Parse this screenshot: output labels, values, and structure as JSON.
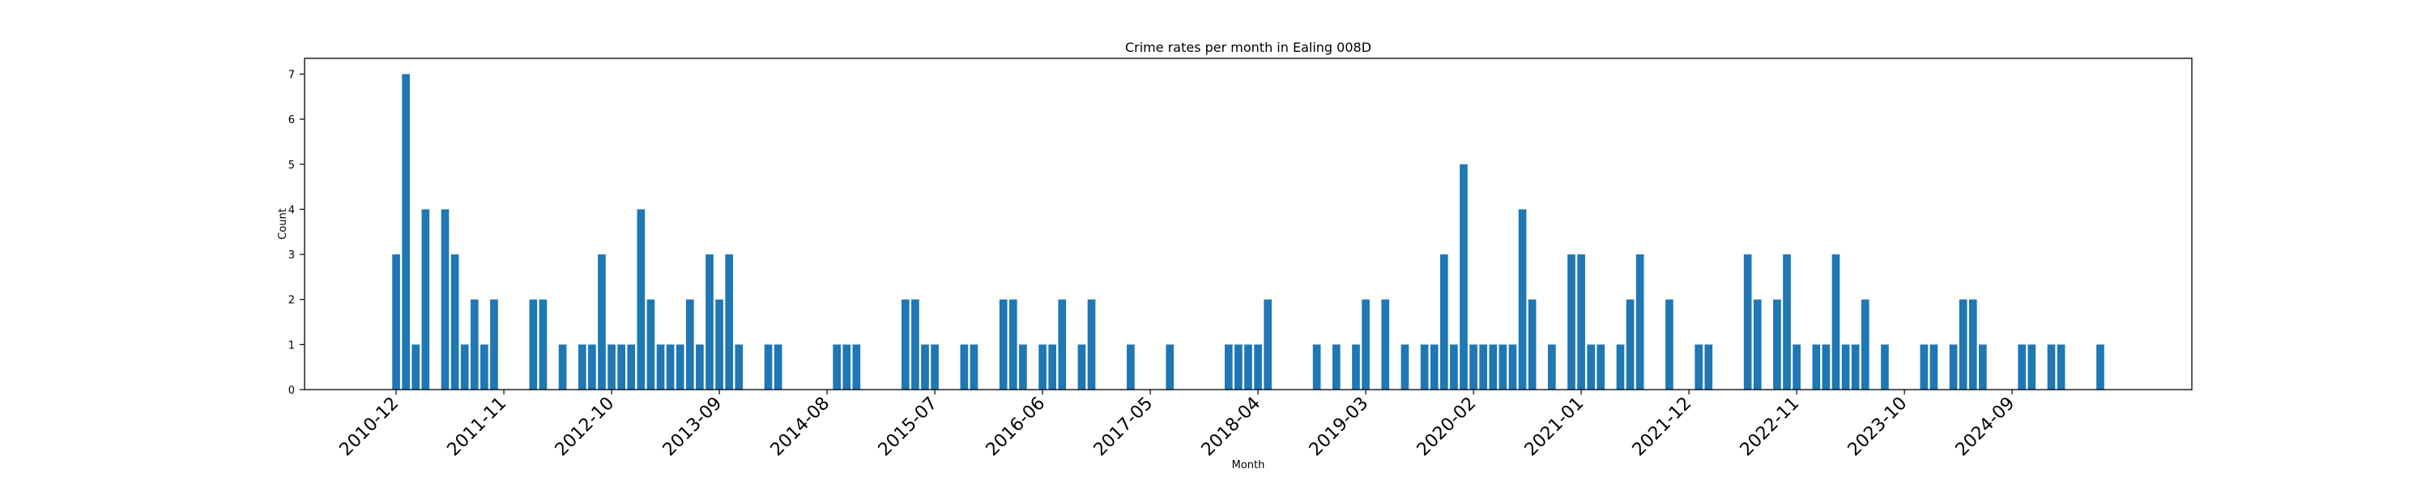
{
  "chart_data": {
    "type": "bar",
    "title": "Crime rates per month in Ealing 008D",
    "xlabel": "Month",
    "ylabel": "Count",
    "ylim": [
      0,
      7.35
    ],
    "yticks": [
      0,
      1,
      2,
      3,
      4,
      5,
      6,
      7
    ],
    "xtick_labels": [
      "2010-12",
      "2011-11",
      "2012-10",
      "2013-09",
      "2014-08",
      "2015-07",
      "2016-06",
      "2017-05",
      "2018-04",
      "2019-03",
      "2020-02",
      "2021-01",
      "2021-12",
      "2022-11",
      "2023-10",
      "2024-09"
    ],
    "bar_color": "#1f77b4",
    "grid": false,
    "points": [
      [
        "2010-12",
        3
      ],
      [
        "2011-01",
        7
      ],
      [
        "2011-02",
        1
      ],
      [
        "2011-03",
        4
      ],
      [
        "2011-05",
        4
      ],
      [
        "2011-06",
        3
      ],
      [
        "2011-07",
        1
      ],
      [
        "2011-08",
        2
      ],
      [
        "2011-09",
        1
      ],
      [
        "2011-10",
        2
      ],
      [
        "2012-02",
        2
      ],
      [
        "2012-03",
        2
      ],
      [
        "2012-05",
        1
      ],
      [
        "2012-07",
        1
      ],
      [
        "2012-08",
        1
      ],
      [
        "2012-09",
        3
      ],
      [
        "2012-10",
        1
      ],
      [
        "2012-11",
        1
      ],
      [
        "2012-12",
        1
      ],
      [
        "2013-01",
        4
      ],
      [
        "2013-02",
        2
      ],
      [
        "2013-03",
        1
      ],
      [
        "2013-04",
        1
      ],
      [
        "2013-05",
        1
      ],
      [
        "2013-06",
        2
      ],
      [
        "2013-07",
        1
      ],
      [
        "2013-08",
        3
      ],
      [
        "2013-09",
        2
      ],
      [
        "2013-10",
        3
      ],
      [
        "2013-11",
        1
      ],
      [
        "2014-02",
        1
      ],
      [
        "2014-03",
        1
      ],
      [
        "2014-09",
        1
      ],
      [
        "2014-10",
        1
      ],
      [
        "2014-11",
        1
      ],
      [
        "2015-04",
        2
      ],
      [
        "2015-05",
        2
      ],
      [
        "2015-06",
        1
      ],
      [
        "2015-07",
        1
      ],
      [
        "2015-10",
        1
      ],
      [
        "2015-11",
        1
      ],
      [
        "2016-02",
        2
      ],
      [
        "2016-03",
        2
      ],
      [
        "2016-04",
        1
      ],
      [
        "2016-06",
        1
      ],
      [
        "2016-07",
        1
      ],
      [
        "2016-08",
        2
      ],
      [
        "2016-10",
        1
      ],
      [
        "2016-11",
        2
      ],
      [
        "2017-03",
        1
      ],
      [
        "2017-07",
        1
      ],
      [
        "2018-01",
        1
      ],
      [
        "2018-02",
        1
      ],
      [
        "2018-03",
        1
      ],
      [
        "2018-04",
        1
      ],
      [
        "2018-05",
        2
      ],
      [
        "2018-10",
        1
      ],
      [
        "2018-12",
        1
      ],
      [
        "2019-02",
        1
      ],
      [
        "2019-03",
        2
      ],
      [
        "2019-05",
        2
      ],
      [
        "2019-07",
        1
      ],
      [
        "2019-09",
        1
      ],
      [
        "2019-10",
        1
      ],
      [
        "2019-11",
        3
      ],
      [
        "2019-12",
        1
      ],
      [
        "2020-01",
        5
      ],
      [
        "2020-02",
        1
      ],
      [
        "2020-03",
        1
      ],
      [
        "2020-04",
        1
      ],
      [
        "2020-05",
        1
      ],
      [
        "2020-06",
        1
      ],
      [
        "2020-07",
        4
      ],
      [
        "2020-08",
        2
      ],
      [
        "2020-10",
        1
      ],
      [
        "2020-12",
        3
      ],
      [
        "2021-01",
        3
      ],
      [
        "2021-02",
        1
      ],
      [
        "2021-03",
        1
      ],
      [
        "2021-05",
        1
      ],
      [
        "2021-06",
        2
      ],
      [
        "2021-07",
        3
      ],
      [
        "2021-10",
        2
      ],
      [
        "2022-01",
        1
      ],
      [
        "2022-02",
        1
      ],
      [
        "2022-06",
        3
      ],
      [
        "2022-07",
        2
      ],
      [
        "2022-09",
        2
      ],
      [
        "2022-10",
        3
      ],
      [
        "2022-11",
        1
      ],
      [
        "2023-01",
        1
      ],
      [
        "2023-02",
        1
      ],
      [
        "2023-03",
        3
      ],
      [
        "2023-04",
        1
      ],
      [
        "2023-05",
        1
      ],
      [
        "2023-06",
        2
      ],
      [
        "2023-08",
        1
      ],
      [
        "2023-12",
        1
      ],
      [
        "2024-01",
        1
      ],
      [
        "2024-03",
        1
      ],
      [
        "2024-04",
        2
      ],
      [
        "2024-05",
        2
      ],
      [
        "2024-06",
        1
      ],
      [
        "2024-10",
        1
      ],
      [
        "2024-11",
        1
      ],
      [
        "2025-01",
        1
      ],
      [
        "2025-02",
        1
      ],
      [
        "2025-06",
        1
      ]
    ]
  }
}
